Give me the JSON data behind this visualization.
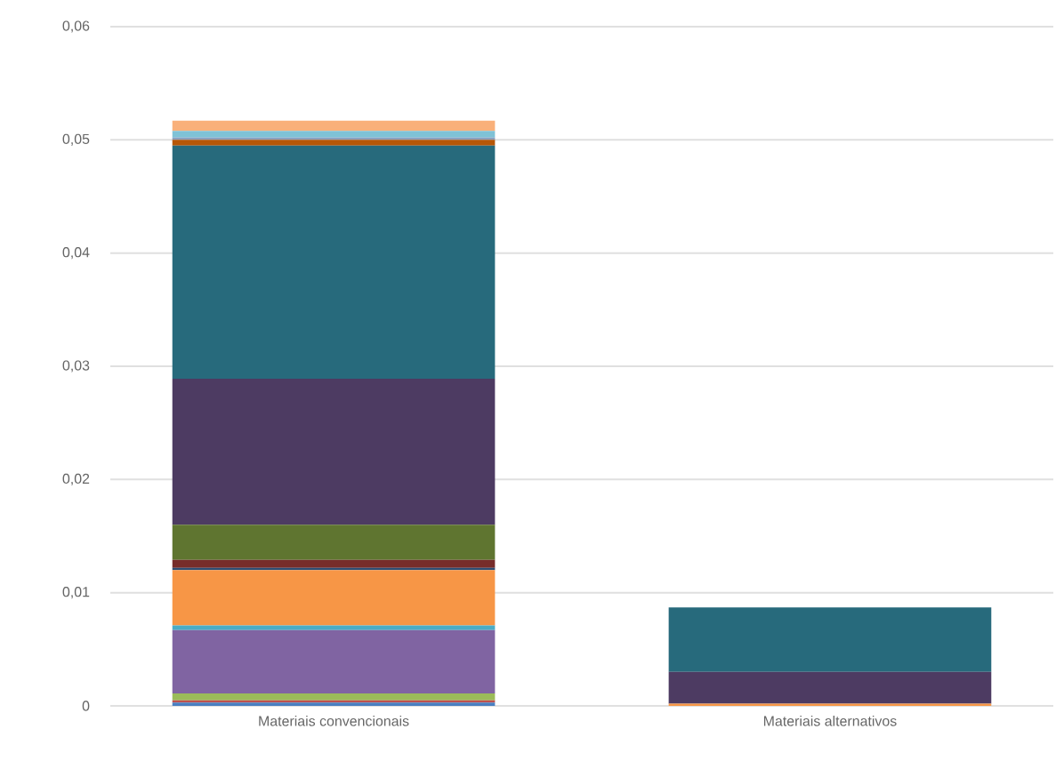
{
  "chart_data": {
    "type": "bar",
    "stacked": true,
    "categories": [
      "Materiais convencionais",
      "Materiais alternativos"
    ],
    "series": [
      {
        "color": "#4a7fc1",
        "values": [
          0.0003,
          0
        ]
      },
      {
        "color": "#c0504d",
        "values": [
          0.0002,
          0
        ]
      },
      {
        "color": "#9bbb59",
        "values": [
          0.0006,
          0
        ]
      },
      {
        "color": "#8064a2",
        "values": [
          0.0056,
          0
        ]
      },
      {
        "color": "#4bacc6",
        "values": [
          0.0004,
          0
        ]
      },
      {
        "color": "#f79646",
        "values": [
          0.0049,
          0.0002
        ]
      },
      {
        "color": "#2c4d75",
        "values": [
          0.0002,
          0
        ]
      },
      {
        "color": "#772c2a",
        "values": [
          0.0007,
          0
        ]
      },
      {
        "color": "#5f7530",
        "values": [
          0.0031,
          0
        ]
      },
      {
        "color": "#4d3b62",
        "values": [
          0.0129,
          0.0028
        ]
      },
      {
        "color": "#276a7c",
        "values": [
          0.0206,
          0.0057
        ]
      },
      {
        "color": "#b65708",
        "values": [
          0.0005,
          0
        ]
      },
      {
        "color": "#8aa0bf",
        "values": [
          0.0002,
          0
        ]
      },
      {
        "color": "#7fc2d6",
        "values": [
          0.0006,
          0
        ]
      },
      {
        "color": "#f9b07a",
        "values": [
          0.0009,
          0
        ]
      }
    ],
    "ylim": [
      0,
      0.06
    ],
    "yticks": [
      {
        "value": 0,
        "label": "0"
      },
      {
        "value": 0.01,
        "label": "0,01"
      },
      {
        "value": 0.02,
        "label": "0,02"
      },
      {
        "value": 0.03,
        "label": "0,03"
      },
      {
        "value": 0.04,
        "label": "0,04"
      },
      {
        "value": 0.05,
        "label": "0,05"
      },
      {
        "value": 0.06,
        "label": "0,06"
      }
    ],
    "grid": "y"
  }
}
